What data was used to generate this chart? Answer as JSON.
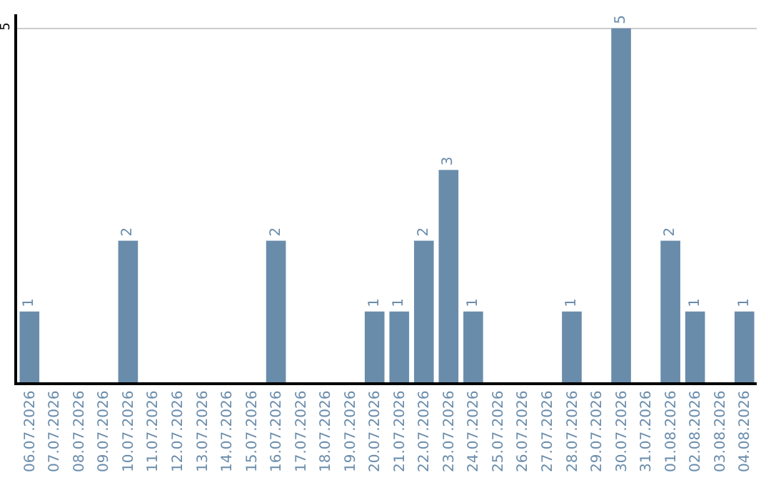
{
  "chart_data": {
    "type": "bar",
    "categories": [
      "06.07.2026",
      "07.07.2026",
      "08.07.2026",
      "09.07.2026",
      "10.07.2026",
      "11.07.2026",
      "12.07.2026",
      "13.07.2026",
      "14.07.2026",
      "15.07.2026",
      "16.07.2026",
      "17.07.2026",
      "18.07.2026",
      "19.07.2026",
      "20.07.2026",
      "21.07.2026",
      "22.07.2026",
      "23.07.2026",
      "24.07.2026",
      "25.07.2026",
      "26.07.2026",
      "27.07.2026",
      "28.07.2026",
      "29.07.2026",
      "30.07.2026",
      "31.07.2026",
      "01.08.2026",
      "02.08.2026",
      "03.08.2026",
      "04.08.2026"
    ],
    "values": [
      1,
      0,
      0,
      0,
      2,
      0,
      0,
      0,
      0,
      0,
      2,
      0,
      0,
      0,
      1,
      1,
      2,
      3,
      1,
      0,
      0,
      0,
      1,
      0,
      5,
      0,
      2,
      1,
      0,
      1
    ],
    "value_labels": [
      "1",
      null,
      null,
      null,
      "2",
      null,
      null,
      null,
      null,
      null,
      "2",
      null,
      null,
      null,
      "1",
      "1",
      "2",
      "3",
      "1",
      null,
      null,
      null,
      "1",
      null,
      "5",
      null,
      "2",
      "1",
      null,
      "1"
    ],
    "color": "#6a8cab",
    "ylim": [
      0,
      5.2
    ],
    "yticks": [
      5
    ],
    "grid": "y",
    "legend": false
  }
}
